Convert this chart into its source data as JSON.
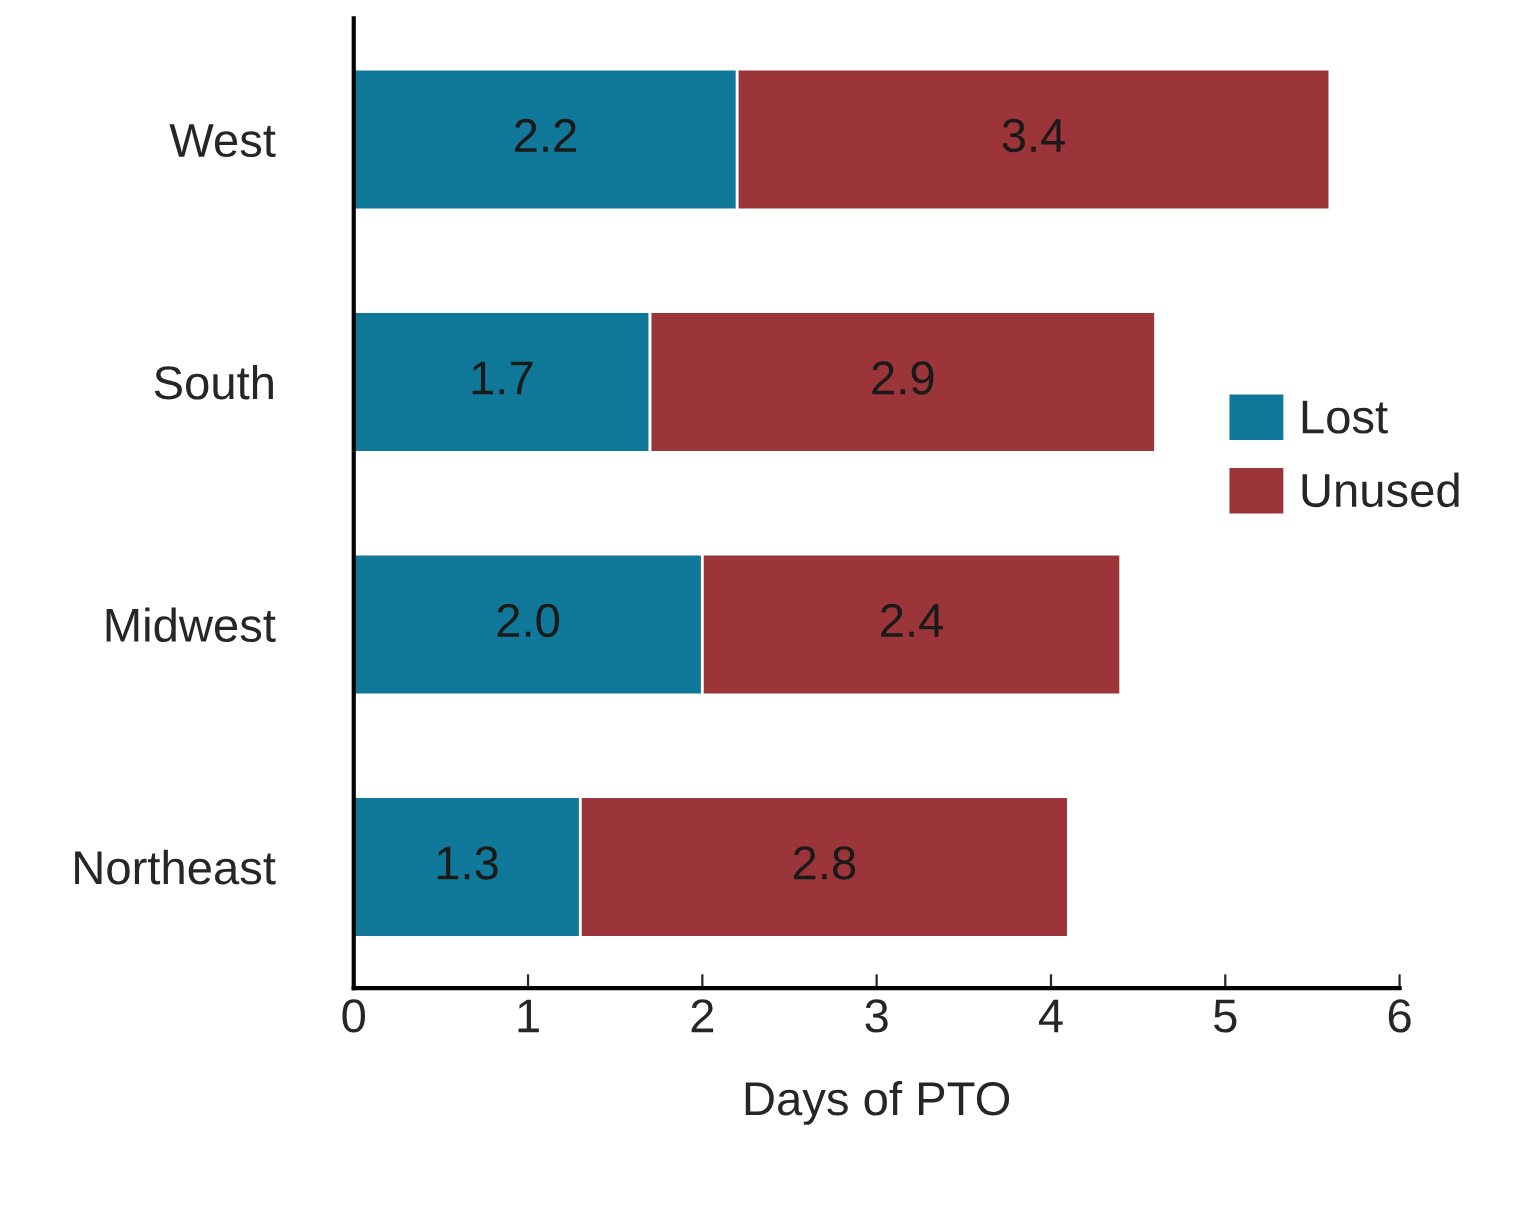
{
  "chart_data": {
    "type": "bar",
    "orientation": "horizontal",
    "stacked": true,
    "categories": [
      "West",
      "South",
      "Midwest",
      "Northeast"
    ],
    "series": [
      {
        "name": "Lost",
        "color": "#10799a",
        "values": [
          2.2,
          1.7,
          2.0,
          1.3
        ],
        "value_labels": [
          "2.2",
          "1.7",
          "2.0",
          "1.3"
        ]
      },
      {
        "name": "Unused",
        "color": "#9b3539",
        "values": [
          3.4,
          2.9,
          2.4,
          2.8
        ],
        "value_labels": [
          "3.4",
          "2.9",
          "2.4",
          "2.8"
        ]
      }
    ],
    "xlabel": "Days of PTO",
    "xlim": [
      0,
      6
    ],
    "xticks": [
      0,
      1,
      2,
      3,
      4,
      5,
      6
    ],
    "legend": "right",
    "grid": false
  }
}
